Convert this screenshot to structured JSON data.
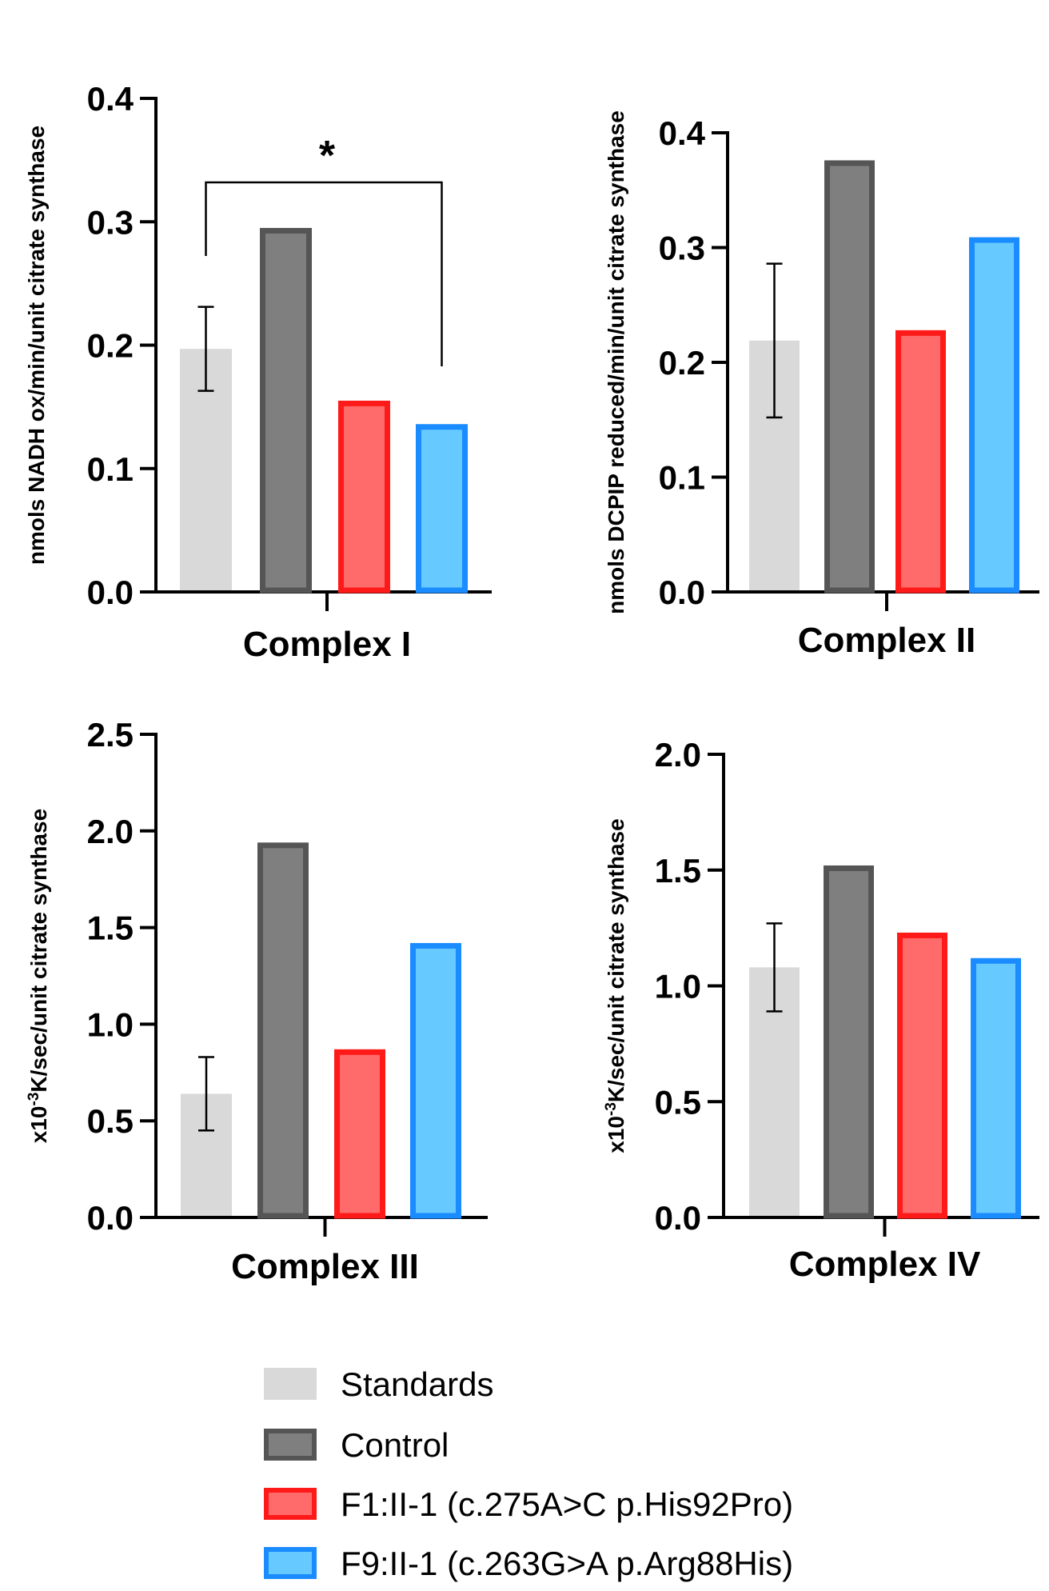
{
  "chart_data": [
    {
      "type": "bar",
      "categories": [
        "Standards",
        "Control",
        "F1:II-1 (c.275A>C p.His92Pro)",
        "F9:II-1 (c.263G>A p.Arg88His)"
      ],
      "values": [
        0.197,
        0.295,
        0.155,
        0.136
      ],
      "errors": [
        0.034,
        null,
        null,
        null
      ],
      "xlabel": "Complex I",
      "ylabel": "nmols NADH ox/min/unit citrate synthase",
      "ylim": [
        0,
        0.4
      ],
      "yticks": [
        "0.0",
        "0.1",
        "0.2",
        "0.3",
        "0.4"
      ],
      "significance": {
        "from": 0,
        "to": 3,
        "label": "*"
      }
    },
    {
      "type": "bar",
      "categories": [
        "Standards",
        "Control",
        "F1:II-1 (c.275A>C p.His92Pro)",
        "F9:II-1 (c.263G>A p.Arg88His)"
      ],
      "values": [
        0.219,
        0.376,
        0.228,
        0.309
      ],
      "errors": [
        0.067,
        null,
        null,
        null
      ],
      "xlabel": "Complex II",
      "ylabel": "nmols DCPIP reduced/min/unit citrate synthase",
      "ylim": [
        0,
        0.4
      ],
      "yticks": [
        "0.0",
        "0.1",
        "0.2",
        "0.3",
        "0.4"
      ]
    },
    {
      "type": "bar",
      "categories": [
        "Standards",
        "Control",
        "F1:II-1 (c.275A>C p.His92Pro)",
        "F9:II-1 (c.263G>A p.Arg88His)"
      ],
      "values": [
        0.64,
        1.94,
        0.87,
        1.42
      ],
      "errors": [
        0.19,
        null,
        null,
        null
      ],
      "xlabel": "Complex III",
      "ylabel_prefix": "x10",
      "ylabel_sup": "-3",
      "ylabel_suffix": "K/sec/unit citrate synthase",
      "ylim": [
        0,
        2.5
      ],
      "yticks": [
        "0.0",
        "0.5",
        "1.0",
        "1.5",
        "2.0",
        "2.5"
      ]
    },
    {
      "type": "bar",
      "categories": [
        "Standards",
        "Control",
        "F1:II-1 (c.275A>C p.His92Pro)",
        "F9:II-1 (c.263G>A p.Arg88His)"
      ],
      "values": [
        1.08,
        1.52,
        1.23,
        1.12
      ],
      "errors": [
        0.19,
        null,
        null,
        null
      ],
      "xlabel": "Complex IV",
      "ylabel_prefix": "x10",
      "ylabel_sup": "-3",
      "ylabel_suffix": "K/sec/unit citrate synthase",
      "ylim": [
        0,
        2.0
      ],
      "yticks": [
        "0.0",
        "0.5",
        "1.0",
        "1.5",
        "2.0"
      ]
    }
  ],
  "legend": [
    {
      "label": "Standards",
      "fill": "#d9d9d9",
      "stroke": "#d9d9d9"
    },
    {
      "label": "Control",
      "fill": "#7f7f7f",
      "stroke": "#555555"
    },
    {
      "label": "F1:II-1 (c.275A>C p.His92Pro)",
      "fill": "#ff6b6b",
      "stroke": "#ff1a1a"
    },
    {
      "label": "F9:II-1 (c.263G>A p.Arg88His)",
      "fill": "#66c9ff",
      "stroke": "#1a8cff"
    }
  ]
}
